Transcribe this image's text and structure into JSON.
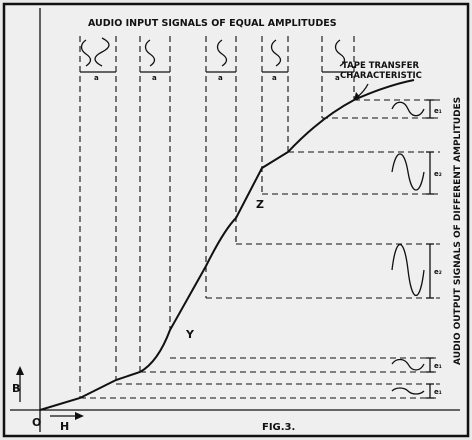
{
  "figure": {
    "top_title": "AUDIO INPUT SIGNALS OF EQUAL AMPLITUDES",
    "side_title": "AUDIO OUTPUT SIGNALS OF DIFFERENT AMPLITUDES",
    "curve_label": "TAPE TRANSFER CHARACTERISTIC",
    "curve_label_line1": "TAPE TRANSFER",
    "curve_label_line2": "CHARACTERISTIC",
    "caption": "FIG.3.",
    "axis_origin": "O",
    "axis_h": "H",
    "axis_b": "B",
    "point_y": "Y",
    "point_z": "Z",
    "input_amplitude_label": "a",
    "output_labels": [
      "e₁",
      "e₂",
      "e₂",
      "e₁",
      "e₁"
    ]
  }
}
